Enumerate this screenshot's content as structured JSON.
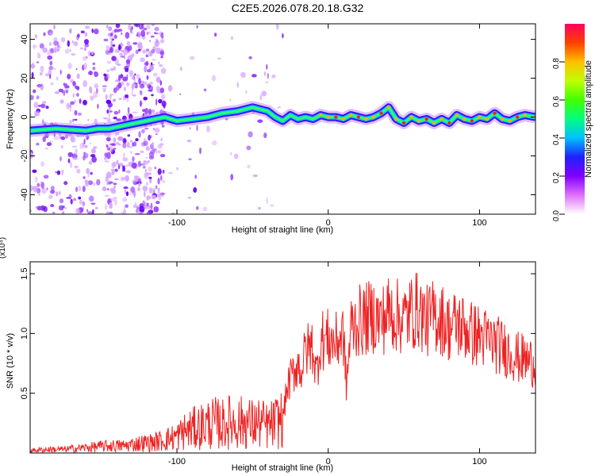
{
  "figure": {
    "title": "C2E5.2026.078.20.18.G32"
  },
  "chart_data": [
    {
      "type": "heatmap",
      "title": "",
      "xlabel": "Height of straight line (km)",
      "ylabel": "Frequency (Hz)",
      "xlim": [
        -197,
        137
      ],
      "ylim": [
        -50,
        48
      ],
      "xticks": [
        -100,
        0,
        100
      ],
      "yticks": [
        -40,
        -20,
        0,
        20,
        40
      ],
      "colorbar": {
        "label": "Normalized spectral amplitude",
        "range": [
          0,
          1
        ],
        "ticks": [
          0.0,
          0.2,
          0.4,
          0.6,
          0.8
        ],
        "tick_labels": [
          "0.0",
          "0.2",
          "0.4",
          "0.6",
          "0.8"
        ],
        "colormap": [
          "#ffffff",
          "#e070ff",
          "#8000ff",
          "#2020ff",
          "#00c0ff",
          "#00ff80",
          "#40ff00",
          "#c0ff00",
          "#ffc000",
          "#ff4000",
          "#ff0060"
        ]
      },
      "ridge": {
        "x": [
          -197,
          -180,
          -160,
          -152,
          -145,
          -108,
          -100,
          -90,
          -80,
          -70,
          -60,
          -50,
          -40,
          -35,
          -30,
          -25,
          -20,
          -15,
          -10,
          -5,
          0,
          5,
          10,
          15,
          20,
          25,
          30,
          35,
          40,
          45,
          50,
          55,
          60,
          65,
          70,
          75,
          80,
          85,
          90,
          95,
          100,
          105,
          110,
          115,
          120,
          125,
          130,
          137
        ],
        "y": [
          -7,
          -6,
          -7,
          -6,
          -6,
          0,
          -2,
          -1,
          0,
          2,
          3,
          5,
          3,
          0,
          -2,
          1,
          -1,
          0,
          -1,
          1,
          0,
          0,
          -1,
          1,
          0,
          -1,
          0,
          2,
          5,
          -1,
          -3,
          0,
          -2,
          -1,
          -3,
          -1,
          -3,
          1,
          -1,
          -2,
          0,
          -1,
          2,
          -1,
          -2,
          0,
          1,
          0
        ]
      }
    },
    {
      "type": "line",
      "title": "",
      "xlabel": "Height of straight line (km)",
      "ylabel": "SNR (10 * v/v)",
      "y_multiplier": "(x10⁴)",
      "xlim": [
        -197,
        137
      ],
      "ylim": [
        0,
        1.6
      ],
      "xticks": [
        -100,
        0,
        100
      ],
      "yticks": [
        0.5,
        1.0,
        1.5
      ],
      "ytick_labels": [
        "0.5",
        "1.0",
        "1.5"
      ],
      "series": [
        {
          "color": "#ee2222",
          "x": [
            -197,
            -185,
            -175,
            -165,
            -155,
            -145,
            -135,
            -125,
            -115,
            -105,
            -100,
            -95,
            -90,
            -85,
            -80,
            -75,
            -70,
            -65,
            -60,
            -55,
            -50,
            -45,
            -40,
            -35,
            -30,
            -27,
            -25,
            -22,
            -20,
            -18,
            -15,
            -12,
            -10,
            -8,
            -5,
            0,
            5,
            10,
            12,
            15,
            20,
            25,
            30,
            35,
            40,
            45,
            50,
            55,
            60,
            65,
            70,
            75,
            80,
            85,
            90,
            95,
            100,
            105,
            110,
            115,
            120,
            125,
            130,
            137
          ],
          "y": [
            0.02,
            0.03,
            0.03,
            0.04,
            0.05,
            0.06,
            0.06,
            0.08,
            0.09,
            0.12,
            0.14,
            0.18,
            0.2,
            0.22,
            0.24,
            0.25,
            0.24,
            0.26,
            0.25,
            0.26,
            0.24,
            0.25,
            0.22,
            0.25,
            0.3,
            0.55,
            0.62,
            0.7,
            0.75,
            0.68,
            0.85,
            0.88,
            0.9,
            0.65,
            0.95,
            0.95,
            0.92,
            1.0,
            0.55,
            1.05,
            1.1,
            1.12,
            1.15,
            1.1,
            1.18,
            1.15,
            1.12,
            1.18,
            1.2,
            1.1,
            1.15,
            1.12,
            1.05,
            1.08,
            1.05,
            1.0,
            0.98,
            0.95,
            0.92,
            0.88,
            0.85,
            0.8,
            0.78,
            0.75
          ]
        }
      ]
    }
  ]
}
